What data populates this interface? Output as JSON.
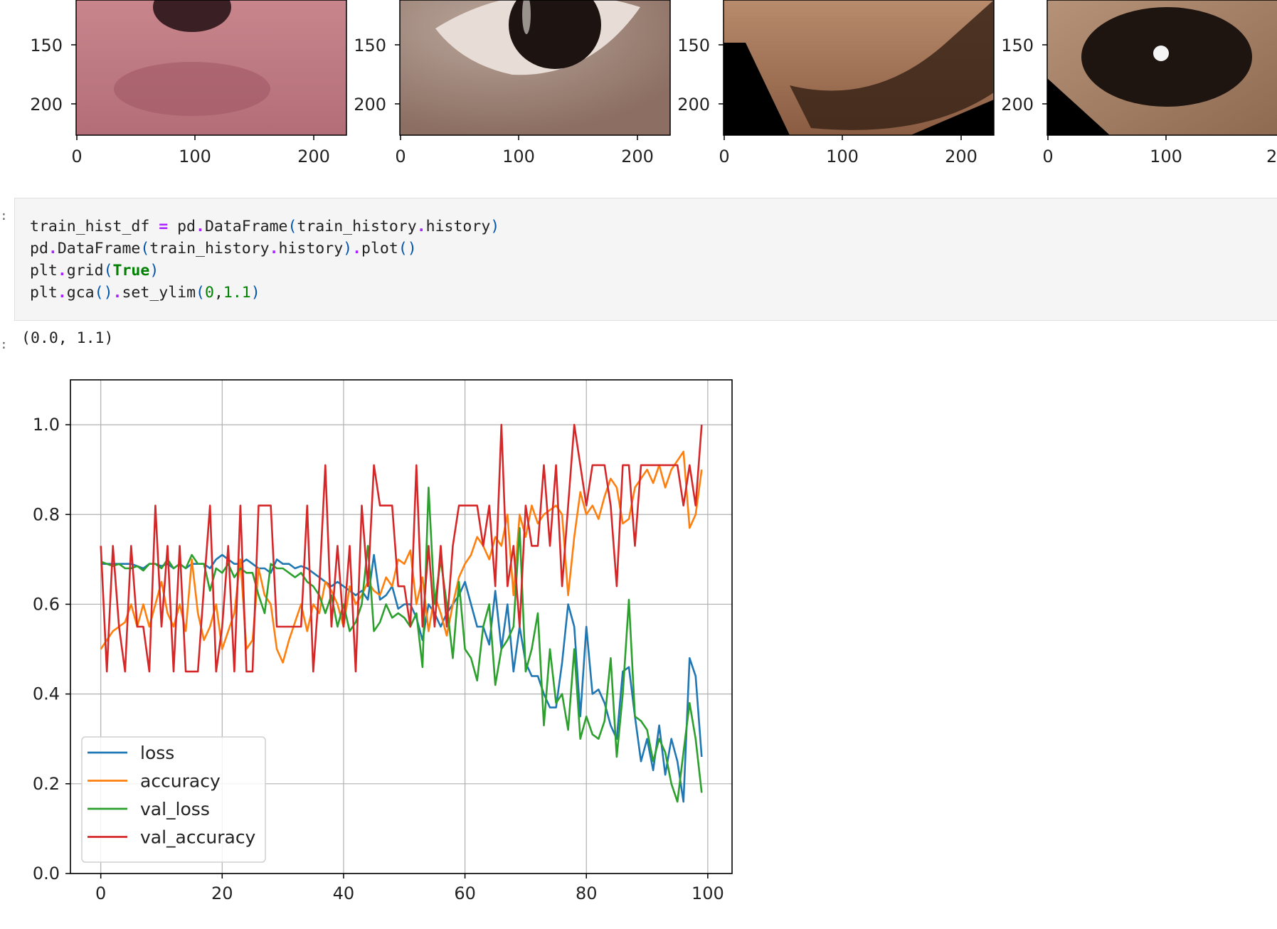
{
  "image_strip": {
    "panels": [
      {
        "yticks": [
          "150",
          "200"
        ],
        "xticks": [
          "0",
          "100",
          "200"
        ]
      },
      {
        "yticks": [
          "150",
          "200"
        ],
        "xticks": [
          "0",
          "100",
          "200"
        ]
      },
      {
        "yticks": [
          "150",
          "200"
        ],
        "xticks": [
          "0",
          "100",
          "200"
        ]
      },
      {
        "yticks": [
          "150",
          "200"
        ],
        "xticks": [
          "0",
          "100",
          "2"
        ]
      }
    ]
  },
  "code_cell": {
    "lines": [
      "train_hist_df = pd.DataFrame(train_history.history)",
      "pd.DataFrame(train_history.history).plot()",
      "plt.grid(True)",
      "plt.gca().set_ylim(0,1.1)"
    ]
  },
  "output": {
    "text": "(0.0, 1.1)"
  },
  "chart_data": {
    "type": "line",
    "title": "",
    "xlabel": "",
    "ylabel": "",
    "xlim": [
      -5,
      104
    ],
    "ylim": [
      0,
      1.1
    ],
    "xticks": [
      0,
      20,
      40,
      60,
      80,
      100
    ],
    "yticks": [
      0.0,
      0.2,
      0.4,
      0.6,
      0.8,
      1.0
    ],
    "xtick_labels": [
      "0",
      "20",
      "40",
      "60",
      "80",
      "100"
    ],
    "ytick_labels": [
      "0.0",
      "0.2",
      "0.4",
      "0.6",
      "0.8",
      "1.0"
    ],
    "grid": true,
    "legend": "lower-left",
    "x_start": 0,
    "x_step": 1,
    "series": [
      {
        "name": "loss",
        "color": "#1f77b4",
        "values": [
          0.69,
          0.69,
          0.69,
          0.69,
          0.69,
          0.69,
          0.685,
          0.68,
          0.69,
          0.69,
          0.685,
          0.69,
          0.68,
          0.69,
          0.68,
          0.69,
          0.69,
          0.69,
          0.68,
          0.7,
          0.71,
          0.7,
          0.69,
          0.69,
          0.7,
          0.69,
          0.68,
          0.68,
          0.67,
          0.7,
          0.69,
          0.69,
          0.68,
          0.685,
          0.68,
          0.67,
          0.66,
          0.65,
          0.64,
          0.65,
          0.64,
          0.63,
          0.62,
          0.63,
          0.61,
          0.71,
          0.61,
          0.62,
          0.64,
          0.59,
          0.6,
          0.6,
          0.57,
          0.52,
          0.6,
          0.58,
          0.55,
          0.58,
          0.6,
          0.62,
          0.65,
          0.6,
          0.55,
          0.55,
          0.51,
          0.63,
          0.5,
          0.6,
          0.45,
          0.55,
          0.47,
          0.44,
          0.44,
          0.4,
          0.37,
          0.37,
          0.47,
          0.6,
          0.55,
          0.35,
          0.55,
          0.4,
          0.41,
          0.38,
          0.33,
          0.3,
          0.45,
          0.46,
          0.35,
          0.25,
          0.3,
          0.23,
          0.33,
          0.22,
          0.3,
          0.25,
          0.16,
          0.48,
          0.44,
          0.26
        ]
      },
      {
        "name": "accuracy",
        "color": "#ff7f0e",
        "values": [
          0.5,
          0.52,
          0.54,
          0.55,
          0.56,
          0.6,
          0.55,
          0.6,
          0.55,
          0.6,
          0.65,
          0.58,
          0.55,
          0.6,
          0.54,
          0.7,
          0.58,
          0.52,
          0.55,
          0.6,
          0.5,
          0.54,
          0.58,
          0.7,
          0.5,
          0.52,
          0.68,
          0.62,
          0.6,
          0.5,
          0.47,
          0.52,
          0.56,
          0.6,
          0.54,
          0.6,
          0.58,
          0.65,
          0.63,
          0.6,
          0.55,
          0.64,
          0.6,
          0.62,
          0.65,
          0.63,
          0.62,
          0.66,
          0.64,
          0.7,
          0.69,
          0.72,
          0.6,
          0.66,
          0.54,
          0.62,
          0.58,
          0.53,
          0.6,
          0.66,
          0.69,
          0.71,
          0.75,
          0.73,
          0.7,
          0.75,
          0.73,
          0.8,
          0.62,
          0.8,
          0.75,
          0.82,
          0.78,
          0.8,
          0.81,
          0.82,
          0.8,
          0.62,
          0.75,
          0.85,
          0.8,
          0.82,
          0.79,
          0.84,
          0.88,
          0.86,
          0.78,
          0.79,
          0.86,
          0.88,
          0.9,
          0.87,
          0.91,
          0.86,
          0.9,
          0.92,
          0.94,
          0.77,
          0.8,
          0.9
        ]
      },
      {
        "name": "val_loss",
        "color": "#2ca02c",
        "values": [
          0.695,
          0.69,
          0.685,
          0.69,
          0.68,
          0.68,
          0.685,
          0.675,
          0.69,
          0.69,
          0.68,
          0.7,
          0.68,
          0.69,
          0.68,
          0.71,
          0.69,
          0.69,
          0.63,
          0.68,
          0.67,
          0.69,
          0.66,
          0.68,
          0.67,
          0.67,
          0.62,
          0.58,
          0.69,
          0.68,
          0.68,
          0.67,
          0.66,
          0.67,
          0.65,
          0.64,
          0.62,
          0.58,
          0.62,
          0.55,
          0.6,
          0.54,
          0.56,
          0.6,
          0.73,
          0.54,
          0.56,
          0.6,
          0.57,
          0.58,
          0.57,
          0.55,
          0.58,
          0.46,
          0.86,
          0.6,
          0.7,
          0.6,
          0.48,
          0.65,
          0.5,
          0.48,
          0.43,
          0.55,
          0.6,
          0.42,
          0.5,
          0.52,
          0.55,
          0.77,
          0.45,
          0.5,
          0.58,
          0.33,
          0.5,
          0.38,
          0.4,
          0.32,
          0.5,
          0.3,
          0.35,
          0.31,
          0.3,
          0.34,
          0.48,
          0.26,
          0.4,
          0.61,
          0.35,
          0.34,
          0.32,
          0.25,
          0.3,
          0.27,
          0.2,
          0.16,
          0.27,
          0.38,
          0.3,
          0.18
        ]
      },
      {
        "name": "val_accuracy",
        "color": "#d62728",
        "values": [
          0.73,
          0.45,
          0.73,
          0.55,
          0.45,
          0.73,
          0.55,
          0.55,
          0.45,
          0.82,
          0.55,
          0.73,
          0.45,
          0.73,
          0.45,
          0.45,
          0.45,
          0.64,
          0.82,
          0.45,
          0.55,
          0.73,
          0.45,
          0.82,
          0.45,
          0.45,
          0.82,
          0.82,
          0.82,
          0.55,
          0.55,
          0.55,
          0.55,
          0.55,
          0.82,
          0.45,
          0.64,
          0.91,
          0.55,
          0.73,
          0.55,
          0.73,
          0.45,
          0.82,
          0.64,
          0.91,
          0.82,
          0.82,
          0.82,
          0.64,
          0.64,
          0.55,
          0.91,
          0.55,
          0.73,
          0.55,
          0.73,
          0.55,
          0.73,
          0.82,
          0.82,
          0.82,
          0.82,
          0.73,
          0.82,
          0.64,
          1.0,
          0.64,
          0.73,
          0.55,
          0.82,
          0.73,
          0.73,
          0.91,
          0.73,
          0.91,
          0.64,
          0.82,
          1.0,
          0.91,
          0.82,
          0.91,
          0.91,
          0.91,
          0.82,
          0.64,
          0.91,
          0.91,
          0.73,
          0.91,
          0.91,
          0.91,
          0.91,
          0.91,
          0.91,
          0.91,
          0.82,
          0.91,
          0.82,
          1.0
        ]
      }
    ]
  }
}
